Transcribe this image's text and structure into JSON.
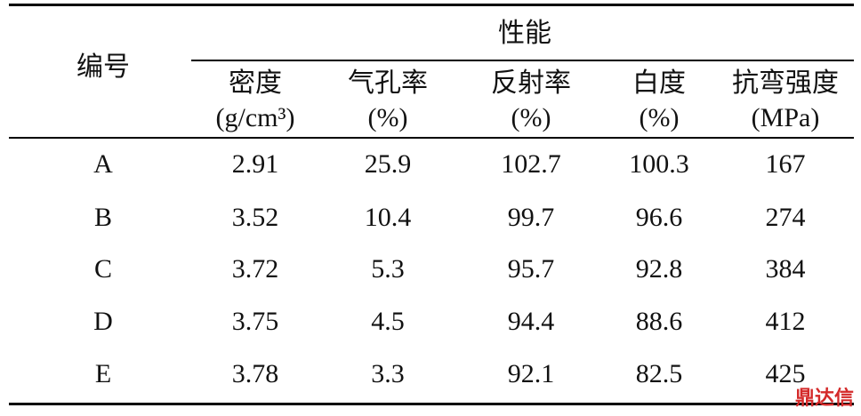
{
  "table": {
    "group_header": "性能",
    "id_header": "编号",
    "columns": [
      {
        "name": "密度",
        "unit": "(g/cm³)"
      },
      {
        "name": "气孔率",
        "unit": "(%)"
      },
      {
        "name": "反射率",
        "unit": "(%)"
      },
      {
        "name": "白度",
        "unit": "(%)"
      },
      {
        "name": "抗弯强度",
        "unit": "(MPa)"
      }
    ],
    "rows": [
      [
        "A",
        "2.91",
        "25.9",
        "102.7",
        "100.3",
        "167"
      ],
      [
        "B",
        "3.52",
        "10.4",
        "99.7",
        "96.6",
        "274"
      ],
      [
        "C",
        "3.72",
        "5.3",
        "95.7",
        "92.8",
        "384"
      ],
      [
        "D",
        "3.75",
        "4.5",
        "94.4",
        "88.6",
        "412"
      ],
      [
        "E",
        "3.78",
        "3.3",
        "92.1",
        "82.5",
        "425"
      ]
    ]
  },
  "watermark": "鼎达信"
}
